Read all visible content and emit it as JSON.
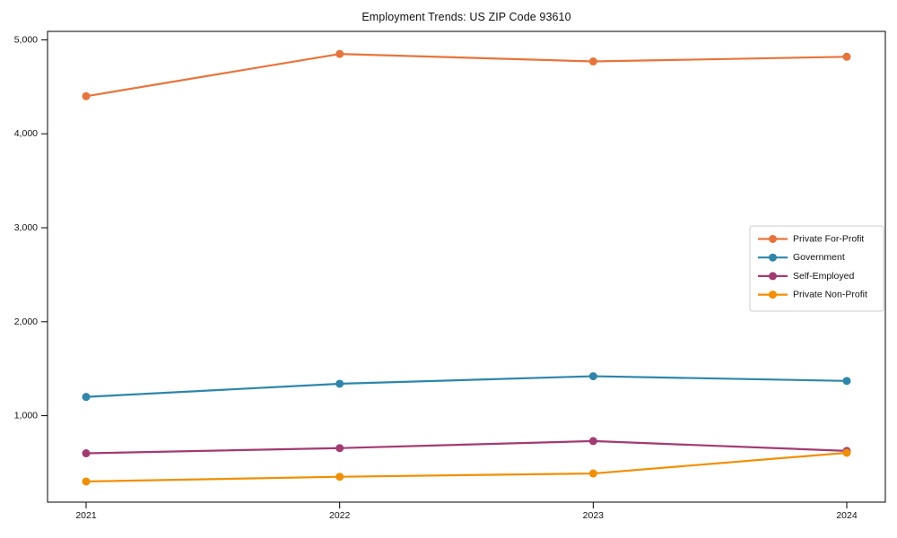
{
  "chart_data": {
    "type": "line",
    "title": "Employment Trends: US ZIP Code 93610",
    "categories": [
      "2021",
      "2022",
      "2023",
      "2024"
    ],
    "series": [
      {
        "name": "Private For-Profit",
        "color": "#E8743B",
        "values": [
          4400,
          4850,
          4770,
          4820
        ]
      },
      {
        "name": "Government",
        "color": "#2E86AB",
        "values": [
          1200,
          1340,
          1420,
          1370
        ]
      },
      {
        "name": "Self-Employed",
        "color": "#A23B72",
        "values": [
          600,
          655,
          730,
          625
        ]
      },
      {
        "name": "Private Non-Profit",
        "color": "#F18F01",
        "values": [
          300,
          350,
          385,
          605
        ]
      }
    ],
    "xlabel": "",
    "ylabel": "",
    "ylim": [
      80,
      5090
    ],
    "yticks": [
      1000,
      2000,
      3000,
      4000,
      5000
    ],
    "ytick_format": "comma",
    "grid": false,
    "legend_position": "right-middle",
    "axis_color": "#000000",
    "text_color": "#111111",
    "legend_border_color": "#cccccc"
  }
}
